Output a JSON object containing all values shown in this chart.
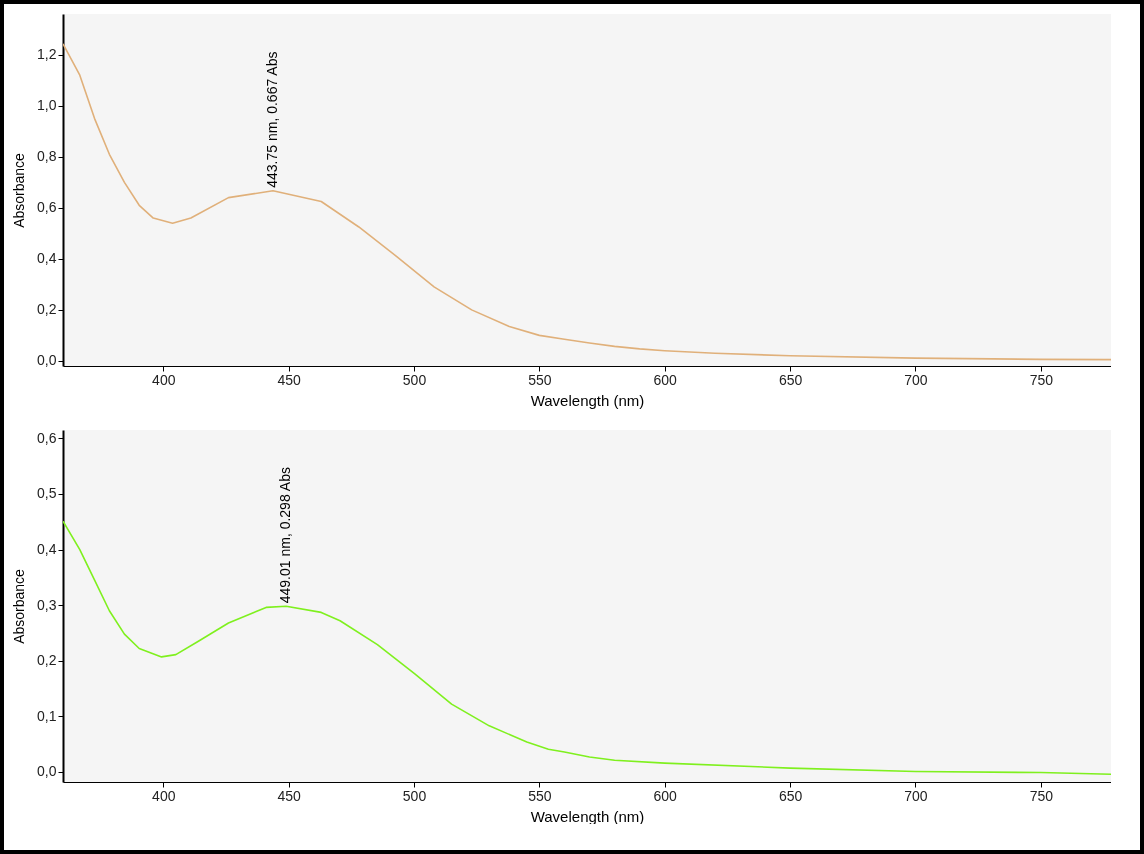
{
  "chart_data": [
    {
      "type": "line",
      "xlabel": "Wavelength (nm)",
      "ylabel": "Absorbance",
      "xlim": [
        360,
        778
      ],
      "ylim": [
        -0.02,
        1.36
      ],
      "xticks": [
        400,
        450,
        500,
        550,
        600,
        650,
        700,
        750
      ],
      "yticks": [
        {
          "value": 0,
          "label": "0,0"
        },
        {
          "value": 0.2,
          "label": "0,2"
        },
        {
          "value": 0.4,
          "label": "0,4"
        },
        {
          "value": 0.6,
          "label": "0,6"
        },
        {
          "value": 0.8,
          "label": "0,8"
        },
        {
          "value": 1.0,
          "label": "1,0"
        },
        {
          "value": 1.2,
          "label": "1,2"
        }
      ],
      "annotations": [
        {
          "text": "443.75 nm, 0.667 Abs",
          "x": 443.75,
          "y": 0.667
        }
      ],
      "series": [
        {
          "color": "#e0b07a",
          "x": [
            360,
            366.7,
            372.6,
            378.5,
            384.5,
            390.4,
            396,
            403.7,
            411,
            426,
            443.75,
            463,
            478,
            493,
            508,
            523,
            538,
            550,
            560,
            570,
            580,
            590,
            600,
            620,
            650,
            700,
            750,
            778
          ],
          "values": [
            1.243,
            1.12,
            0.95,
            0.81,
            0.7,
            0.61,
            0.56,
            0.54,
            0.56,
            0.64,
            0.667,
            0.625,
            0.525,
            0.41,
            0.29,
            0.2,
            0.135,
            0.1,
            0.085,
            0.07,
            0.057,
            0.047,
            0.04,
            0.03,
            0.02,
            0.011,
            0.006,
            0.005
          ]
        }
      ]
    },
    {
      "type": "line",
      "xlabel": "Wavelength (nm)",
      "ylabel": "Absorbance",
      "xlim": [
        360,
        778
      ],
      "ylim": [
        -0.018,
        0.615
      ],
      "xticks": [
        400,
        450,
        500,
        550,
        600,
        650,
        700,
        750
      ],
      "yticks": [
        {
          "value": 0,
          "label": "0,0"
        },
        {
          "value": 0.1,
          "label": "0,1"
        },
        {
          "value": 0.2,
          "label": "0,2"
        },
        {
          "value": 0.3,
          "label": "0,3"
        },
        {
          "value": 0.4,
          "label": "0,4"
        },
        {
          "value": 0.5,
          "label": "0,5"
        },
        {
          "value": 0.6,
          "label": "0,6"
        }
      ],
      "annotations": [
        {
          "text": "449.01 nm, 0.298 Abs",
          "x": 449.01,
          "y": 0.298
        }
      ],
      "series": [
        {
          "color": "#7ff01e",
          "x": [
            360,
            366.7,
            372.6,
            378.5,
            384.5,
            390.4,
            399.3,
            405,
            414,
            426,
            441,
            449.01,
            463,
            470.5,
            485.4,
            500.2,
            515,
            530,
            545,
            553.6,
            560,
            570,
            580,
            600,
            650,
            700,
            750,
            778
          ],
          "values": [
            0.451,
            0.4,
            0.345,
            0.29,
            0.248,
            0.222,
            0.207,
            0.211,
            0.235,
            0.268,
            0.296,
            0.298,
            0.287,
            0.272,
            0.229,
            0.177,
            0.122,
            0.083,
            0.054,
            0.041,
            0.036,
            0.027,
            0.021,
            0.016,
            0.007,
            0.001,
            -0.001,
            -0.004
          ]
        }
      ]
    }
  ]
}
